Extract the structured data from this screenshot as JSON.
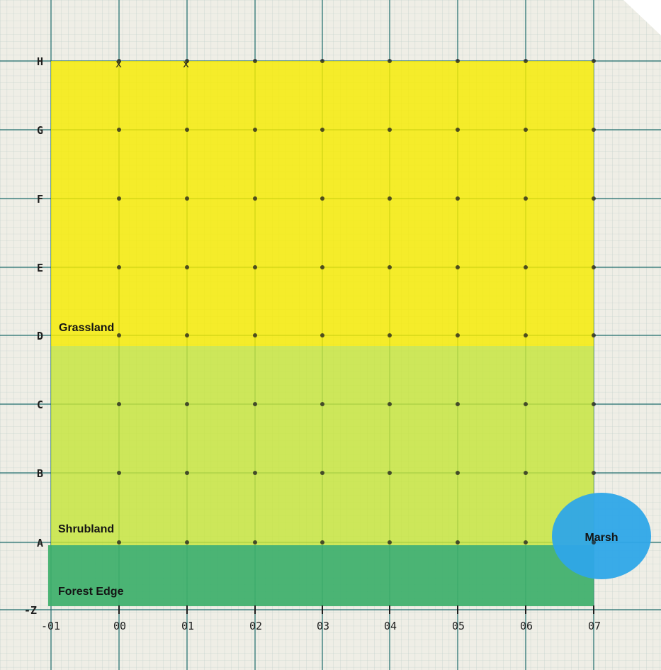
{
  "map": {
    "row_labels": [
      "H",
      "G",
      "F",
      "E",
      "D",
      "C",
      "B",
      "A",
      "-Z"
    ],
    "col_labels": [
      "-01",
      "00",
      "01",
      "02",
      "03",
      "04",
      "05",
      "06",
      "07"
    ],
    "zones": {
      "grassland": {
        "label": "Grassland",
        "color": "#f6ec00"
      },
      "shrubland": {
        "label": "Shrubland",
        "color": "#c6e53a"
      },
      "forest_edge": {
        "label": "Forest Edge",
        "color": "#3daf6a"
      },
      "marsh": {
        "label": "Marsh",
        "color": "#2ea6e8"
      }
    },
    "colors": {
      "paper": "#efeee6",
      "minor_grid": "#b9cbc8",
      "major_grid": "#1d6b6b",
      "ink": "#1d1d1d"
    }
  }
}
